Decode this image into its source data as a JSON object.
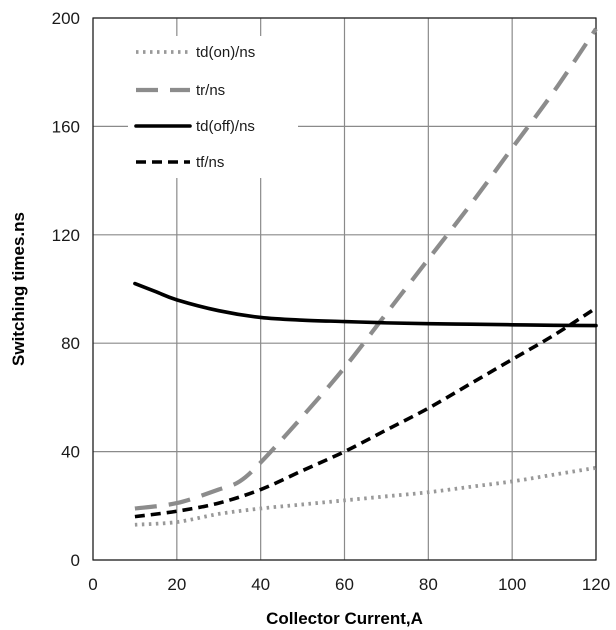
{
  "chart_data": {
    "type": "line",
    "title": "",
    "xlabel": "Collector Current,A",
    "ylabel": "Switching times.ns",
    "xlim": [
      0,
      120
    ],
    "ylim": [
      0,
      200
    ],
    "x_ticks": [
      0,
      20,
      40,
      60,
      80,
      100,
      120
    ],
    "y_ticks": [
      0,
      40,
      80,
      120,
      160,
      200
    ],
    "grid": true,
    "legend_position": "top-left",
    "series": [
      {
        "name": "td(on)/ns",
        "style": "dotted",
        "color": "#999999",
        "x": [
          10,
          20,
          30,
          40,
          50,
          60,
          70,
          80,
          90,
          100,
          110,
          120
        ],
        "y": [
          13,
          14,
          17,
          19,
          20.5,
          22,
          23.5,
          25,
          27,
          29,
          31.5,
          34
        ]
      },
      {
        "name": "tr/ns",
        "style": "dashed-long",
        "color": "#8c8c8c",
        "x": [
          10,
          20,
          30,
          35,
          40,
          50,
          60,
          70,
          80,
          90,
          100,
          110,
          120
        ],
        "y": [
          19,
          21,
          26,
          29,
          36,
          53,
          71,
          91,
          111,
          131,
          152,
          173,
          196
        ]
      },
      {
        "name": "td(off)/ns",
        "style": "solid",
        "color": "#000000",
        "x": [
          10,
          15,
          20,
          30,
          40,
          50,
          60,
          70,
          80,
          90,
          100,
          110,
          120
        ],
        "y": [
          102,
          99,
          96,
          92,
          89.5,
          88.5,
          88,
          87.5,
          87.2,
          87,
          86.8,
          86.6,
          86.5
        ]
      },
      {
        "name": "tf/ns",
        "style": "dashed",
        "color": "#000000",
        "x": [
          10,
          20,
          30,
          40,
          50,
          60,
          70,
          80,
          90,
          100,
          110,
          120
        ],
        "y": [
          16,
          18,
          21,
          26,
          33,
          40,
          48,
          56,
          65,
          74,
          83,
          93
        ]
      }
    ]
  }
}
